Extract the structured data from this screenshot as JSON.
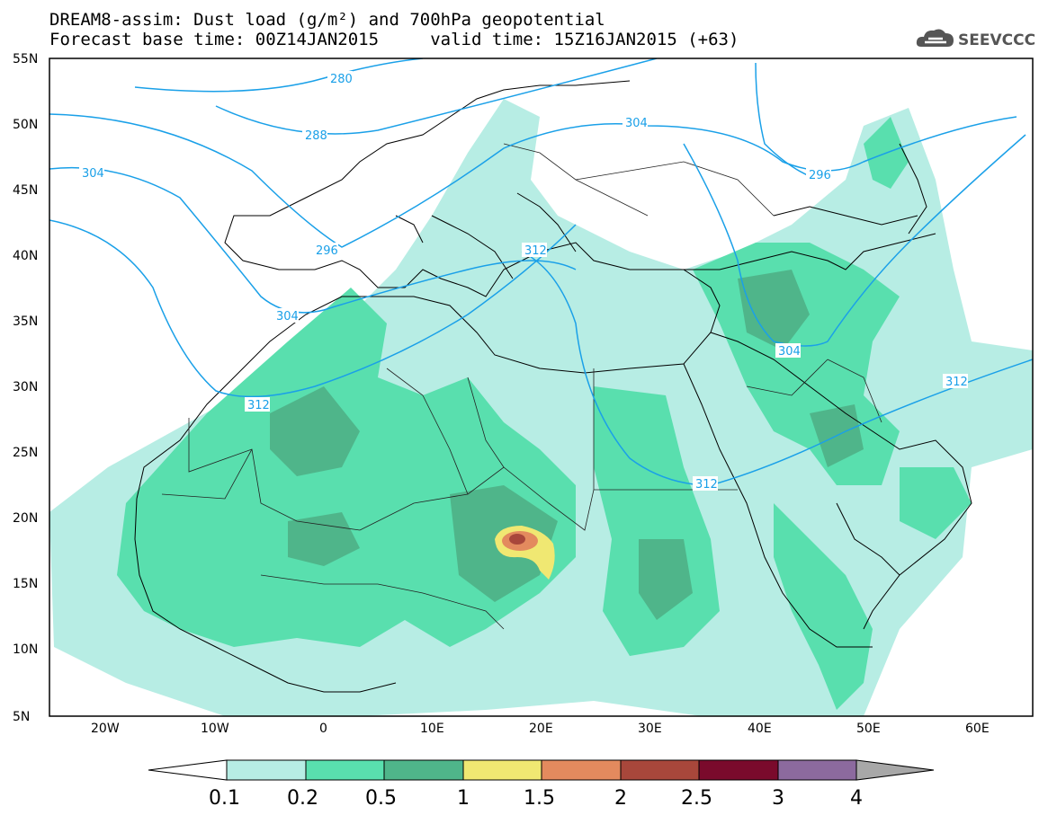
{
  "header": {
    "line1": "DREAM8-assim: Dust load (g/m²) and 700hPa geopotential",
    "line2": "Forecast base time: 00Z14JAN2015     valid time: 15Z16JAN2015 (+63)"
  },
  "logo": {
    "text": "SEEVCCC",
    "icon": "cloud-icon"
  },
  "map": {
    "lon_range": [
      -25,
      65
    ],
    "lat_range": [
      5,
      55
    ],
    "lat_ticks": [
      "55N",
      "50N",
      "45N",
      "40N",
      "35N",
      "30N",
      "25N",
      "20N",
      "15N",
      "10N",
      "5N"
    ],
    "lon_ticks": [
      "20W",
      "10W",
      "0",
      "10E",
      "20E",
      "30E",
      "40E",
      "50E",
      "60E"
    ],
    "contour_labels": [
      "280",
      "288",
      "304",
      "304",
      "296",
      "304",
      "312",
      "312",
      "312",
      "296",
      "304",
      "312"
    ]
  },
  "colorbar": {
    "ticks": [
      "0.1",
      "0.2",
      "0.5",
      "1",
      "1.5",
      "2",
      "2.5",
      "3",
      "4"
    ],
    "colors": [
      "#ffffff",
      "#b7ede4",
      "#59dfae",
      "#4fb58a",
      "#f0e872",
      "#e38a5e",
      "#a8473b",
      "#7a0a2c",
      "#8c6a9e",
      "#a8a8a8"
    ]
  },
  "colors": {
    "contour": "#1aa0e8",
    "frame": "#000000"
  }
}
